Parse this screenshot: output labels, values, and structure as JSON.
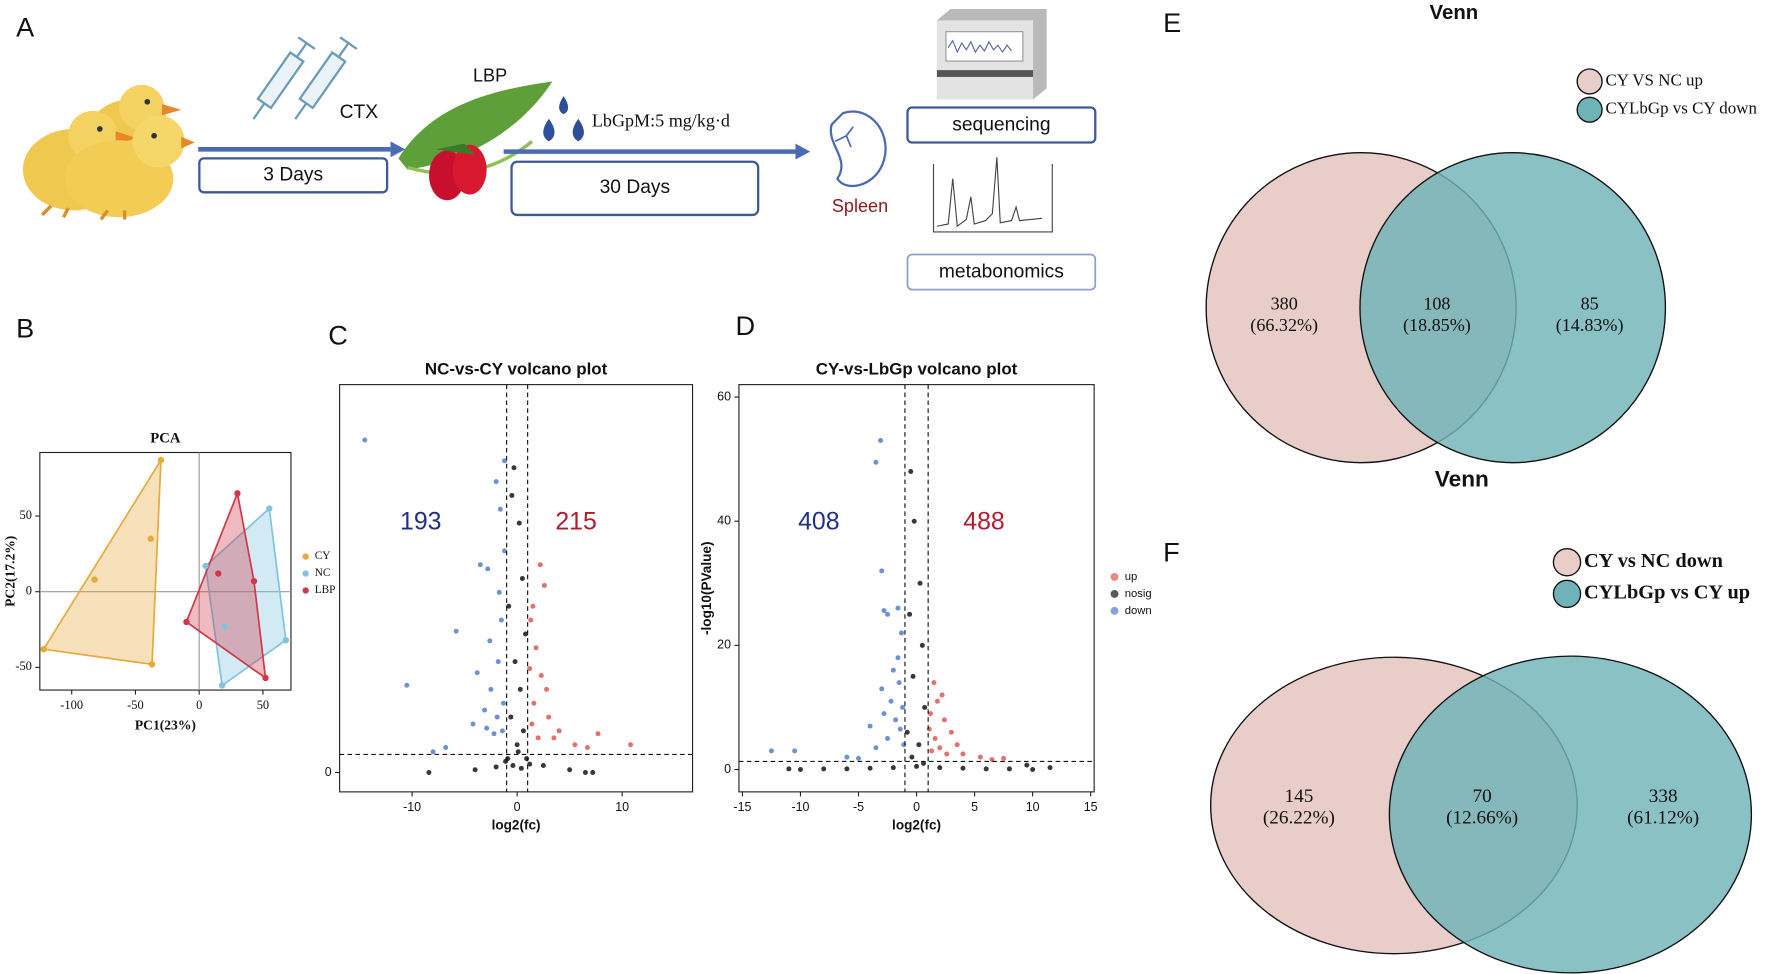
{
  "panel_labels": [
    "A",
    "B",
    "C",
    "D",
    "E",
    "F"
  ],
  "schematic": {
    "drug": "CTX",
    "step1": "3 Days",
    "extract": "LBP",
    "dose": "LbGpM:5 mg/kg·d",
    "step2": "30 Days",
    "organ": "Spleen",
    "assay1": "sequencing",
    "assay2": "metabonomics"
  },
  "chart_data": [
    {
      "type": "pca",
      "title": "PCA",
      "x_label": "PC1(23%)",
      "y_label": "PC2(17.2%)",
      "xlim": [
        -125,
        72
      ],
      "ylim": [
        -65,
        92
      ],
      "xticks": [
        -100,
        -50,
        0,
        50
      ],
      "yticks": [
        -50,
        0,
        50
      ],
      "zero_lines": true,
      "legend": "right",
      "series": [
        {
          "name": "CY",
          "color": "#e8a83a",
          "x": [
            -30,
            -38,
            -82,
            -122,
            -37
          ],
          "values": [
            87,
            35,
            8,
            -38,
            -48
          ]
        },
        {
          "name": "NC",
          "color": "#7ec4de",
          "x": [
            55,
            5,
            68,
            18,
            20
          ],
          "values": [
            55,
            17,
            -32,
            -62,
            -23
          ]
        },
        {
          "name": "LBP",
          "color": "#d0384a",
          "x": [
            30,
            -10,
            52,
            43,
            15
          ],
          "values": [
            65,
            -20,
            -57,
            7,
            12
          ]
        }
      ]
    },
    {
      "type": "volcano",
      "title": "NC-vs-CY volcano plot",
      "x_label": "log2(fc)",
      "xlim": [
        -16.9,
        16.7
      ],
      "ylim": [
        -1.4,
        28
      ],
      "xticks": [
        -10,
        0,
        10
      ],
      "yticks": [
        0
      ],
      "thresholds": {
        "x": [
          -1,
          1
        ],
        "y": 1.3
      },
      "down_count": 193,
      "up_count": 215,
      "series": [
        {
          "color": "#e0605a",
          "x": [
            2.2,
            2.6,
            7.7,
            10.8,
            1.5,
            1.8,
            2.3,
            1.6,
            3,
            2.8,
            4,
            1.4,
            5.5,
            2,
            1.2,
            1.3,
            3.5,
            6.7
          ],
          "values": [
            15,
            13.5,
            2.8,
            2,
            12,
            9,
            7,
            5,
            4,
            6,
            3,
            3.5,
            2,
            2.5,
            7.5,
            11,
            2.5,
            1.8
          ]
        },
        {
          "color": "#222222",
          "x": [
            -0.5,
            -0.3,
            0.2,
            0.5,
            -0.8,
            0.8,
            -0.2,
            0.3,
            -0.6,
            0.6,
            0,
            -0.9,
            0.9,
            -0.4,
            0.4,
            0.1,
            -1.1,
            1.2,
            -2,
            2.5,
            -4,
            5,
            -8.4,
            7.2,
            6.5
          ],
          "values": [
            20,
            22,
            18,
            14,
            12,
            10,
            8,
            6,
            4,
            3,
            2,
            1,
            1,
            0.5,
            0.3,
            1.5,
            0.8,
            0.6,
            0.4,
            0.5,
            0.2,
            0.2,
            0,
            0,
            0
          ]
        },
        {
          "color": "#5b86cc",
          "x": [
            -14.5,
            -10.5,
            -5.8,
            -3.5,
            -2.8,
            -2,
            -1.6,
            -1.2,
            -3.1,
            -4.2,
            -2.5,
            -1.8,
            -1.5,
            -2.2,
            -1.3,
            -3.8,
            -2.9,
            -1.9,
            -1.4,
            -6.8,
            -8,
            -2.6,
            -1.7,
            -1.2
          ],
          "values": [
            24,
            6.3,
            10.2,
            15,
            14.7,
            21,
            19,
            22.5,
            4.5,
            3.5,
            6,
            8,
            11,
            2.8,
            5,
            7.2,
            3.2,
            4,
            3,
            1.8,
            1.5,
            9.5,
            13,
            16
          ]
        }
      ]
    },
    {
      "type": "volcano",
      "title": "CY-vs-LbGp volcano plot",
      "x_label": "log2(fc)",
      "y_label": "-log10(PValue)",
      "xlim": [
        -15.3,
        15.3
      ],
      "ylim": [
        -3.6,
        62
      ],
      "xticks": [
        -15,
        -10,
        -5,
        0,
        5,
        10,
        15
      ],
      "yticks": [
        0,
        20,
        40,
        60
      ],
      "thresholds": {
        "x": [
          -1,
          1
        ],
        "y": 1.3
      },
      "down_count": 408,
      "up_count": 488,
      "legend": "right",
      "series": [
        {
          "name": "up",
          "color": "#e0605a",
          "x": [
            1.5,
            1.8,
            1.2,
            2.4,
            3,
            1.6,
            2,
            4,
            5.5,
            7.5,
            3.5,
            1.3,
            2.6,
            1.1,
            6.5,
            2.2
          ],
          "values": [
            14,
            11,
            9,
            8,
            6,
            5,
            3.5,
            2.5,
            2,
            1.8,
            4,
            3,
            2.5,
            6.5,
            1.6,
            12
          ]
        },
        {
          "name": "nosig",
          "color": "#222222",
          "x": [
            -0.5,
            -0.2,
            0.3,
            -0.6,
            0.5,
            -0.3,
            0.7,
            -0.8,
            0.2,
            -0.4,
            0.6,
            0,
            -2,
            2,
            -4,
            4,
            -6,
            6,
            -8,
            8,
            -10,
            10,
            -11,
            11.5,
            9.5
          ],
          "values": [
            48,
            40,
            30,
            25,
            20,
            15,
            10,
            6,
            4,
            2,
            1,
            0.5,
            0.3,
            0.3,
            0.2,
            0.2,
            0.1,
            0.1,
            0.1,
            0.1,
            0,
            0,
            0.1,
            0.3,
            0.7
          ]
        },
        {
          "name": "down",
          "color": "#5b86cc",
          "x": [
            -3.1,
            -3.5,
            -3,
            -2.5,
            -2.8,
            -1.6,
            -1.3,
            -12.5,
            -10.5,
            -6,
            -4,
            -3,
            -2,
            -1.5,
            -1.2,
            -2.5,
            -3.5,
            -1.8,
            -1.1,
            -2.2,
            -5,
            -1.4,
            -2.8,
            -1.6
          ],
          "values": [
            53,
            49.5,
            32,
            25,
            25.6,
            26,
            22,
            3,
            3,
            2,
            7,
            13,
            16,
            14,
            10,
            5,
            3.5,
            8,
            4,
            11,
            1.8,
            6.5,
            9,
            18
          ]
        }
      ]
    },
    {
      "type": "venn",
      "title": "Venn",
      "series": [
        {
          "name": "CY VS NC up",
          "color": "#e8cdc9"
        },
        {
          "name": "CYLbGp vs CY down",
          "color": "#6fb3b8"
        }
      ],
      "values": [
        380,
        108,
        85
      ],
      "percentages": [
        66.32,
        18.85,
        14.83
      ],
      "percentage_labels": [
        "(66.32%)",
        "(18.85%)",
        "(14.83%)"
      ]
    },
    {
      "type": "venn",
      "title": "Venn",
      "series": [
        {
          "name": "CY vs NC down",
          "color": "#e8cdc9"
        },
        {
          "name": "CYLbGp vs CY up",
          "color": "#6fb3b8"
        }
      ],
      "values": [
        145,
        70,
        338
      ],
      "percentages": [
        26.22,
        12.66,
        61.12
      ],
      "percentage_labels": [
        "(26.22%)",
        "(12.66%)",
        "(61.12%)"
      ]
    }
  ]
}
